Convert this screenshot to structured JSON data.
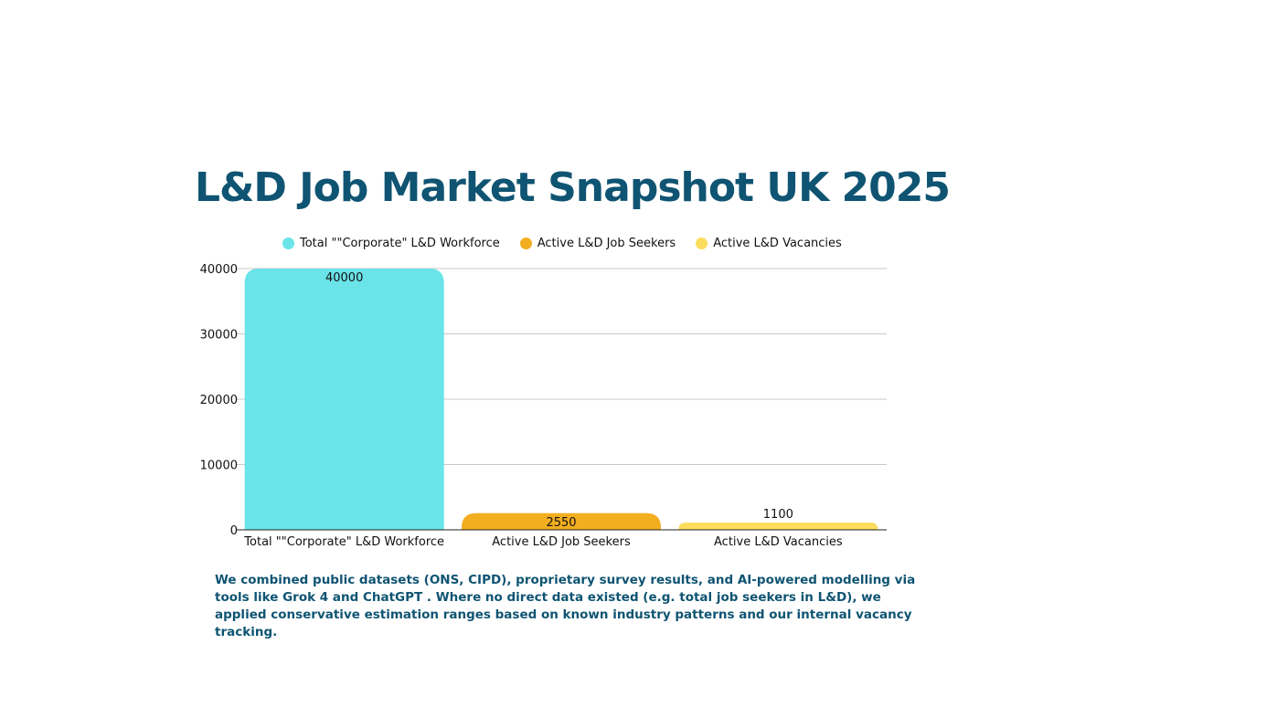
{
  "colors": {
    "title": "#0f5472",
    "note": "#0f5472",
    "grid": "#c8c8c8",
    "axis": "#222222",
    "text": "#111111"
  },
  "chart_data": {
    "type": "bar",
    "title": "L&D Job Market Snapshot UK 2025",
    "categories": [
      "Total \"\"Corporate\" L&D Workforce",
      "Active L&D Job Seekers",
      "Active L&D Vacancies"
    ],
    "values": [
      40000,
      2550,
      1100
    ],
    "data_labels": [
      "40000",
      "2550",
      "1100"
    ],
    "colors": [
      "#6ae4e8",
      "#f3ae1f",
      "#fbdc5c"
    ],
    "legend": [
      "Total \"\"Corporate\" L&D Workforce",
      "Active L&D Job Seekers",
      "Active L&D Vacancies"
    ],
    "legend_position": "top",
    "yticks": [
      "0",
      "10000",
      "20000",
      "30000",
      "40000"
    ],
    "ylim": [
      0,
      40000
    ],
    "xlabel": "",
    "ylabel": "",
    "grid": true
  },
  "note": "We combined public datasets (ONS, CIPD), proprietary survey results, and AI-powered modelling via tools like Grok 4 and ChatGPT . Where no direct data existed (e.g. total job seekers in L&D), we applied conservative estimation ranges based on known industry patterns and our internal vacancy tracking."
}
